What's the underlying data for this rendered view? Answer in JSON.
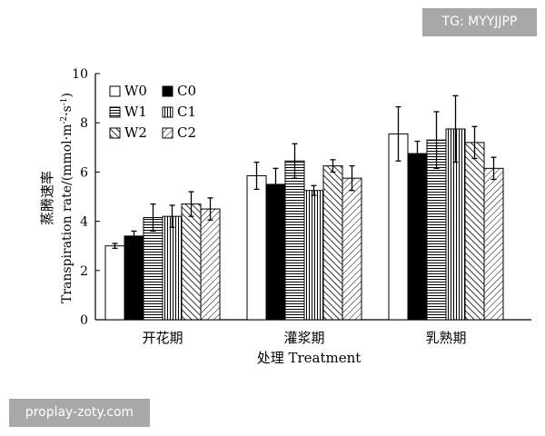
{
  "watermarks": {
    "top": "TG: MYYJJPP",
    "bottom": "proplay-zoty.com"
  },
  "chart_data": {
    "type": "bar",
    "ylabel_cn": "蒸腾速率",
    "ylabel_en_main": "Transpiration rate/(mmol·m",
    "ylabel_en_sup1": "-2",
    "ylabel_en_mid": "·s",
    "ylabel_en_sup2": "-1",
    "ylabel_en_end": ")",
    "xlabel": "处理 Treatment",
    "ylim": [
      0,
      10
    ],
    "yticks": [
      "0",
      "2",
      "4",
      "6",
      "8",
      "10"
    ],
    "categories": [
      "开花期",
      "灌浆期",
      "乳熟期"
    ],
    "grid": false,
    "legend_position": "top-left",
    "series": [
      {
        "name": "W0",
        "pattern": "white",
        "values": [
          3.0,
          5.85,
          7.55
        ],
        "errors": [
          0.1,
          0.55,
          1.1
        ]
      },
      {
        "name": "C0",
        "pattern": "black",
        "values": [
          3.4,
          5.5,
          6.75
        ],
        "errors": [
          0.2,
          0.65,
          0.5
        ]
      },
      {
        "name": "W1",
        "pattern": "hlines",
        "values": [
          4.15,
          6.45,
          7.3
        ],
        "errors": [
          0.55,
          0.7,
          1.15
        ]
      },
      {
        "name": "C1",
        "pattern": "vlines",
        "values": [
          4.2,
          5.25,
          7.75
        ],
        "errors": [
          0.45,
          0.2,
          1.35
        ]
      },
      {
        "name": "W2",
        "pattern": "backdiag",
        "values": [
          4.7,
          6.25,
          7.2
        ],
        "errors": [
          0.5,
          0.25,
          0.65
        ]
      },
      {
        "name": "C2",
        "pattern": "fwddiag",
        "values": [
          4.5,
          5.75,
          6.15
        ],
        "errors": [
          0.45,
          0.5,
          0.45
        ]
      }
    ]
  }
}
